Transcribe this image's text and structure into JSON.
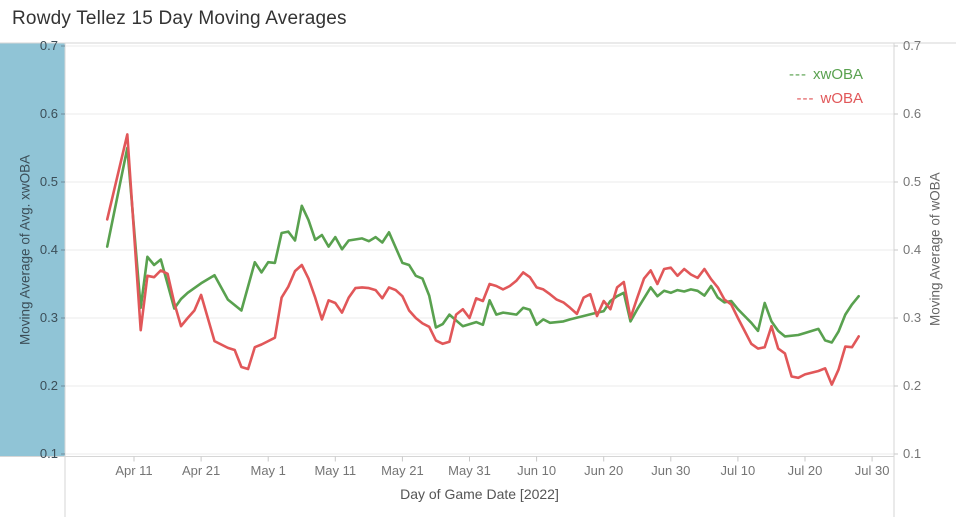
{
  "title": "Rowdy Tellez 15 Day Moving Averages",
  "left_axis": {
    "title": "Moving Average of Avg. xwOBA",
    "tick_labels": [
      "0.7",
      "0.6",
      "0.5",
      "0.4",
      "0.3",
      "0.2",
      "0.1"
    ],
    "band_color": "#90c4d6"
  },
  "right_axis": {
    "title": "Moving Average of wOBA",
    "tick_labels": [
      "0.7",
      "0.6",
      "0.5",
      "0.4",
      "0.3",
      "0.2",
      "0.1"
    ]
  },
  "x_axis": {
    "title": "Day of Game Date [2022]",
    "tick_labels": [
      "Apr 11",
      "Apr 21",
      "May 1",
      "May 11",
      "May 21",
      "May 31",
      "Jun 10",
      "Jun 20",
      "Jun 30",
      "Jul 10",
      "Jul 20",
      "Jul 30"
    ]
  },
  "legend": [
    {
      "dash": "---",
      "label": "xwOBA",
      "color": "#59a14f"
    },
    {
      "dash": "---",
      "label": "wOBA",
      "color": "#e15759"
    }
  ],
  "chart_data": {
    "type": "line",
    "title": "Rowdy Tellez 15 Day Moving Averages",
    "xlabel": "Day of Game Date [2022]",
    "ylabel_left": "Moving Average of Avg. xwOBA",
    "ylabel_right": "Moving Average of wOBA",
    "grid": "horizontal",
    "legend_position": "top-right",
    "ylim": [
      0.1,
      0.7
    ],
    "y_ticks": [
      0.7,
      0.6,
      0.5,
      0.4,
      0.3,
      0.2,
      0.1
    ],
    "x_note": "x = day index; day 4 = Apr 11 tick, 10 days between ticks; series span Apr 7 (day 0) to Jul 28 (day 112)",
    "x_ticks": [
      {
        "label": "Apr 11",
        "day": 4
      },
      {
        "label": "Apr 21",
        "day": 14
      },
      {
        "label": "May 1",
        "day": 24
      },
      {
        "label": "May 11",
        "day": 34
      },
      {
        "label": "May 21",
        "day": 44
      },
      {
        "label": "May 31",
        "day": 54
      },
      {
        "label": "Jun 10",
        "day": 64
      },
      {
        "label": "Jun 20",
        "day": 74
      },
      {
        "label": "Jun 30",
        "day": 84
      },
      {
        "label": "Jul 10",
        "day": 94
      },
      {
        "label": "Jul 20",
        "day": 104
      },
      {
        "label": "Jul 30",
        "day": 114
      }
    ],
    "series": [
      {
        "name": "xwOBA",
        "color": "#59a14f",
        "axis": "left",
        "points": [
          [
            0,
            0.405
          ],
          [
            3,
            0.55
          ],
          [
            5,
            0.315
          ],
          [
            6,
            0.39
          ],
          [
            7,
            0.378
          ],
          [
            8,
            0.386
          ],
          [
            9,
            0.35
          ],
          [
            10,
            0.314
          ],
          [
            11,
            0.328
          ],
          [
            12,
            0.337
          ],
          [
            14,
            0.351
          ],
          [
            16,
            0.363
          ],
          [
            18,
            0.327
          ],
          [
            20,
            0.311
          ],
          [
            22,
            0.382
          ],
          [
            23,
            0.367
          ],
          [
            24,
            0.382
          ],
          [
            25,
            0.381
          ],
          [
            26,
            0.425
          ],
          [
            27,
            0.427
          ],
          [
            28,
            0.414
          ],
          [
            29,
            0.465
          ],
          [
            30,
            0.444
          ],
          [
            31,
            0.415
          ],
          [
            32,
            0.422
          ],
          [
            33,
            0.405
          ],
          [
            34,
            0.419
          ],
          [
            35,
            0.401
          ],
          [
            36,
            0.414
          ],
          [
            38,
            0.417
          ],
          [
            39,
            0.413
          ],
          [
            40,
            0.419
          ],
          [
            41,
            0.411
          ],
          [
            42,
            0.426
          ],
          [
            44,
            0.381
          ],
          [
            45,
            0.378
          ],
          [
            46,
            0.362
          ],
          [
            47,
            0.358
          ],
          [
            48,
            0.333
          ],
          [
            49,
            0.286
          ],
          [
            50,
            0.291
          ],
          [
            51,
            0.305
          ],
          [
            53,
            0.288
          ],
          [
            55,
            0.294
          ],
          [
            56,
            0.29
          ],
          [
            57,
            0.326
          ],
          [
            58,
            0.305
          ],
          [
            59,
            0.308
          ],
          [
            61,
            0.305
          ],
          [
            62,
            0.315
          ],
          [
            63,
            0.312
          ],
          [
            64,
            0.29
          ],
          [
            65,
            0.298
          ],
          [
            66,
            0.293
          ],
          [
            68,
            0.295
          ],
          [
            69,
            0.298
          ],
          [
            71,
            0.303
          ],
          [
            73,
            0.308
          ],
          [
            74,
            0.31
          ],
          [
            75,
            0.325
          ],
          [
            76,
            0.332
          ],
          [
            77,
            0.337
          ],
          [
            78,
            0.295
          ],
          [
            79,
            0.313
          ],
          [
            81,
            0.345
          ],
          [
            82,
            0.332
          ],
          [
            83,
            0.34
          ],
          [
            84,
            0.337
          ],
          [
            85,
            0.341
          ],
          [
            86,
            0.339
          ],
          [
            87,
            0.342
          ],
          [
            88,
            0.34
          ],
          [
            89,
            0.333
          ],
          [
            90,
            0.347
          ],
          [
            91,
            0.33
          ],
          [
            92,
            0.323
          ],
          [
            93,
            0.325
          ],
          [
            94,
            0.313
          ],
          [
            95,
            0.303
          ],
          [
            96,
            0.293
          ],
          [
            97,
            0.281
          ],
          [
            98,
            0.322
          ],
          [
            99,
            0.295
          ],
          [
            100,
            0.281
          ],
          [
            101,
            0.273
          ],
          [
            103,
            0.275
          ],
          [
            104,
            0.278
          ],
          [
            106,
            0.284
          ],
          [
            107,
            0.267
          ],
          [
            108,
            0.264
          ],
          [
            109,
            0.28
          ],
          [
            110,
            0.305
          ],
          [
            111,
            0.32
          ],
          [
            112,
            0.332
          ]
        ]
      },
      {
        "name": "wOBA",
        "color": "#e15759",
        "axis": "right",
        "points": [
          [
            0,
            0.445
          ],
          [
            3,
            0.57
          ],
          [
            5,
            0.282
          ],
          [
            6,
            0.362
          ],
          [
            7,
            0.36
          ],
          [
            8,
            0.37
          ],
          [
            9,
            0.365
          ],
          [
            10,
            0.322
          ],
          [
            11,
            0.288
          ],
          [
            12,
            0.3
          ],
          [
            13,
            0.311
          ],
          [
            14,
            0.334
          ],
          [
            16,
            0.266
          ],
          [
            18,
            0.256
          ],
          [
            19,
            0.253
          ],
          [
            20,
            0.228
          ],
          [
            21,
            0.225
          ],
          [
            22,
            0.257
          ],
          [
            23,
            0.261
          ],
          [
            24,
            0.266
          ],
          [
            25,
            0.271
          ],
          [
            26,
            0.33
          ],
          [
            27,
            0.346
          ],
          [
            28,
            0.369
          ],
          [
            29,
            0.378
          ],
          [
            30,
            0.358
          ],
          [
            31,
            0.33
          ],
          [
            32,
            0.298
          ],
          [
            33,
            0.326
          ],
          [
            34,
            0.322
          ],
          [
            35,
            0.308
          ],
          [
            36,
            0.33
          ],
          [
            37,
            0.344
          ],
          [
            38,
            0.345
          ],
          [
            39,
            0.344
          ],
          [
            40,
            0.341
          ],
          [
            41,
            0.329
          ],
          [
            42,
            0.345
          ],
          [
            43,
            0.341
          ],
          [
            44,
            0.332
          ],
          [
            45,
            0.311
          ],
          [
            46,
            0.3
          ],
          [
            47,
            0.292
          ],
          [
            48,
            0.287
          ],
          [
            49,
            0.267
          ],
          [
            50,
            0.262
          ],
          [
            51,
            0.265
          ],
          [
            52,
            0.305
          ],
          [
            53,
            0.313
          ],
          [
            54,
            0.3
          ],
          [
            55,
            0.329
          ],
          [
            56,
            0.325
          ],
          [
            57,
            0.35
          ],
          [
            58,
            0.347
          ],
          [
            59,
            0.342
          ],
          [
            60,
            0.347
          ],
          [
            61,
            0.355
          ],
          [
            62,
            0.367
          ],
          [
            63,
            0.36
          ],
          [
            64,
            0.345
          ],
          [
            65,
            0.342
          ],
          [
            66,
            0.335
          ],
          [
            67,
            0.327
          ],
          [
            68,
            0.323
          ],
          [
            69,
            0.315
          ],
          [
            70,
            0.306
          ],
          [
            71,
            0.33
          ],
          [
            72,
            0.335
          ],
          [
            73,
            0.303
          ],
          [
            74,
            0.325
          ],
          [
            75,
            0.313
          ],
          [
            76,
            0.345
          ],
          [
            77,
            0.353
          ],
          [
            78,
            0.3
          ],
          [
            79,
            0.33
          ],
          [
            80,
            0.358
          ],
          [
            81,
            0.37
          ],
          [
            82,
            0.35
          ],
          [
            83,
            0.372
          ],
          [
            84,
            0.374
          ],
          [
            85,
            0.362
          ],
          [
            86,
            0.372
          ],
          [
            87,
            0.364
          ],
          [
            88,
            0.359
          ],
          [
            89,
            0.372
          ],
          [
            90,
            0.357
          ],
          [
            91,
            0.345
          ],
          [
            92,
            0.327
          ],
          [
            93,
            0.32
          ],
          [
            94,
            0.3
          ],
          [
            95,
            0.281
          ],
          [
            96,
            0.262
          ],
          [
            97,
            0.255
          ],
          [
            98,
            0.257
          ],
          [
            99,
            0.288
          ],
          [
            100,
            0.255
          ],
          [
            101,
            0.248
          ],
          [
            102,
            0.214
          ],
          [
            103,
            0.212
          ],
          [
            104,
            0.217
          ],
          [
            106,
            0.222
          ],
          [
            107,
            0.226
          ],
          [
            108,
            0.202
          ],
          [
            109,
            0.224
          ],
          [
            110,
            0.258
          ],
          [
            111,
            0.257
          ],
          [
            112,
            0.273
          ]
        ]
      }
    ]
  }
}
